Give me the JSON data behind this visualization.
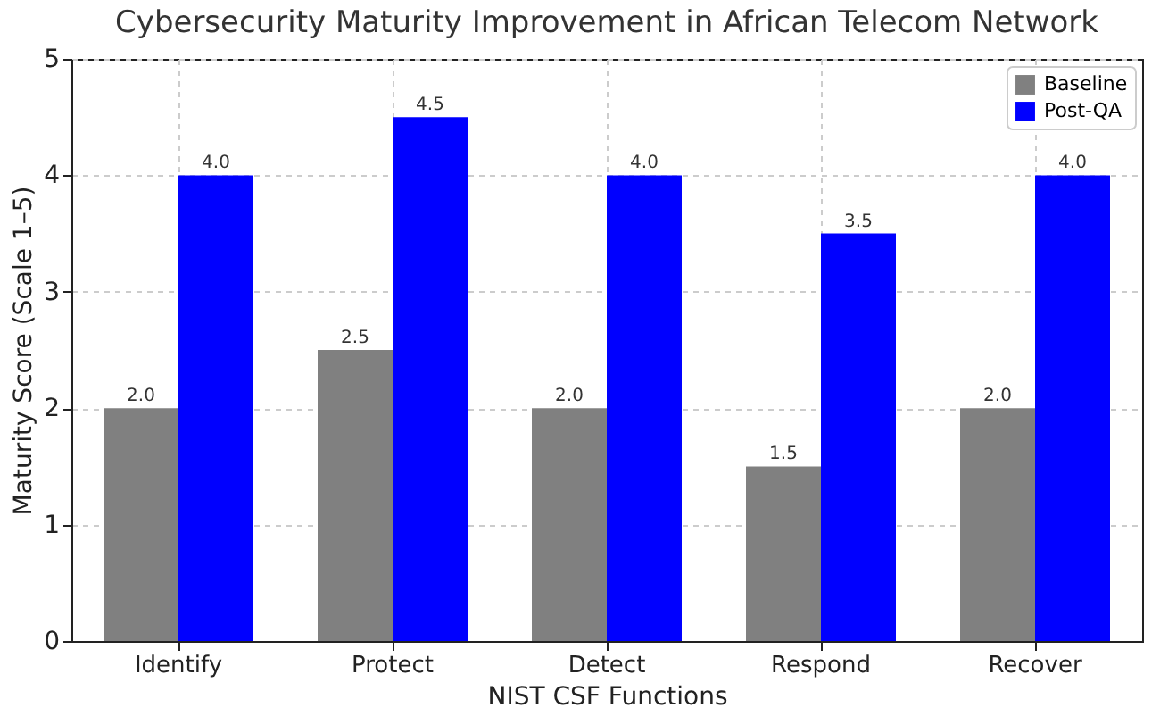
{
  "chart_data": {
    "type": "bar",
    "title": "Cybersecurity Maturity Improvement in African Telecom Network",
    "xlabel": "NIST CSF Functions",
    "ylabel": "Maturity Score (Scale 1–5)",
    "categories": [
      "Identify",
      "Protect",
      "Detect",
      "Respond",
      "Recover"
    ],
    "series": [
      {
        "name": "Baseline",
        "color": "#808080",
        "values": [
          2.0,
          2.5,
          2.0,
          1.5,
          2.0
        ],
        "value_labels": [
          "2.0",
          "2.5",
          "2.0",
          "1.5",
          "2.0"
        ]
      },
      {
        "name": "Post-QA",
        "color": "#0000ff",
        "values": [
          4.0,
          4.5,
          4.0,
          3.5,
          4.0
        ],
        "value_labels": [
          "4.0",
          "4.5",
          "4.0",
          "3.5",
          "4.0"
        ]
      }
    ],
    "ylim": [
      0,
      5
    ],
    "yticks": [
      0,
      1,
      2,
      3,
      4,
      5
    ],
    "grid": true,
    "legend": "top right"
  }
}
